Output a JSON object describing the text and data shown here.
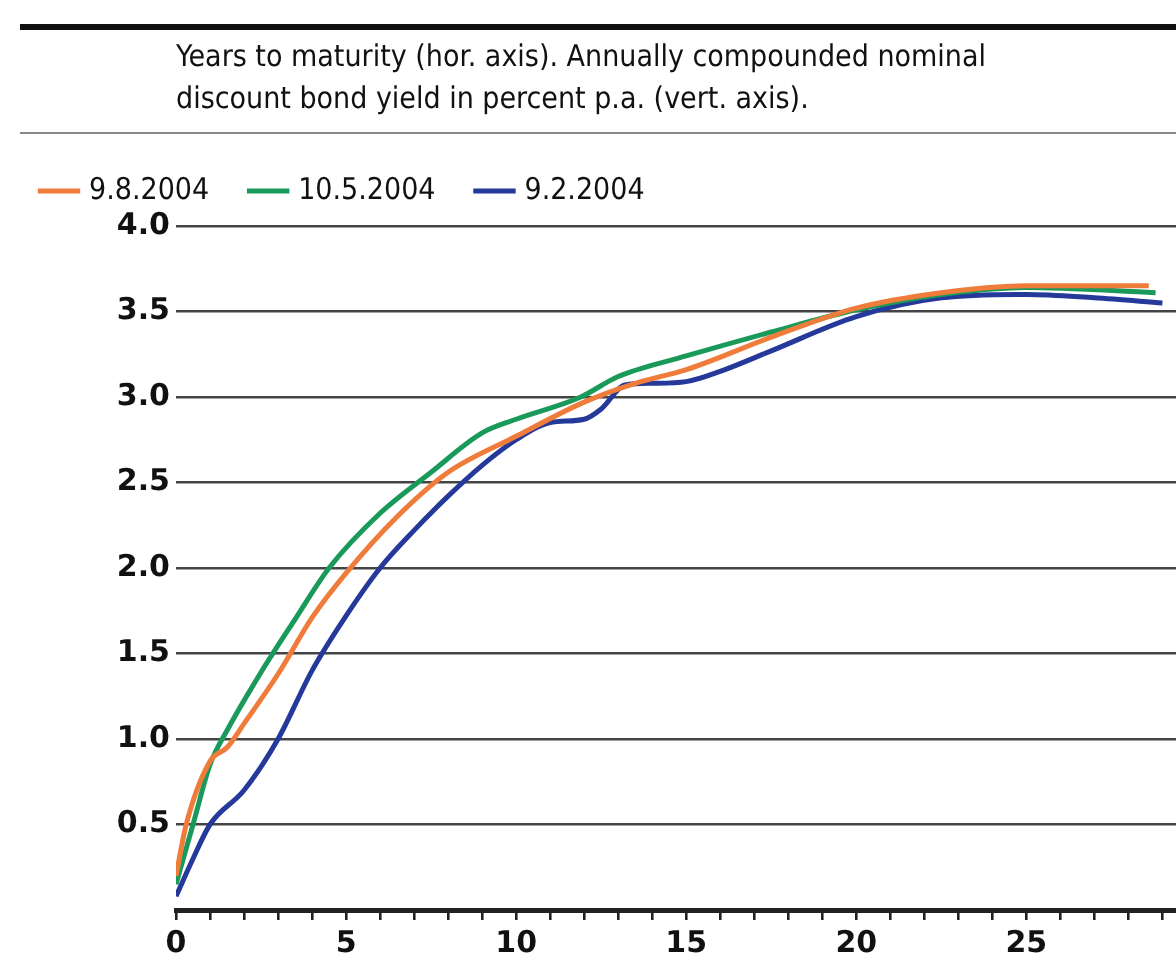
{
  "chart_data": {
    "type": "line",
    "subtitle": "Years to maturity (hor. axis). Annually compounded nominal discount bond yield in percent p.a. (vert. axis).",
    "xlim": [
      0,
      29.4
    ],
    "ylim": [
      0,
      4
    ],
    "xticks": [
      0,
      {
        "value": 1,
        "label": null
      },
      {
        "value": 2,
        "label": null
      },
      {
        "value": 3,
        "label": null
      },
      {
        "value": 4,
        "label": null
      },
      5,
      {
        "value": 6,
        "label": null
      },
      {
        "value": 7,
        "label": null
      },
      {
        "value": 8,
        "label": null
      },
      {
        "value": 9,
        "label": null
      },
      10,
      {
        "value": 11,
        "label": null
      },
      {
        "value": 12,
        "label": null
      },
      {
        "value": 13,
        "label": null
      },
      {
        "value": 14,
        "label": null
      },
      15,
      {
        "value": 16,
        "label": null
      },
      {
        "value": 17,
        "label": null
      },
      {
        "value": 18,
        "label": null
      },
      {
        "value": 19,
        "label": null
      },
      20,
      {
        "value": 21,
        "label": null
      },
      {
        "value": 22,
        "label": null
      },
      {
        "value": 23,
        "label": null
      },
      {
        "value": 24,
        "label": null
      },
      25,
      {
        "value": 26,
        "label": null
      },
      {
        "value": 27,
        "label": null
      },
      {
        "value": 28,
        "label": null
      },
      {
        "value": 29,
        "label": null
      }
    ],
    "yticks": [
      {
        "value": 0.5,
        "label": "0.5"
      },
      {
        "value": 1,
        "label": "1.0"
      },
      {
        "value": 1.5,
        "label": "1.5"
      },
      {
        "value": 2,
        "label": "2.0"
      },
      {
        "value": 2.5,
        "label": "2.5"
      },
      {
        "value": 3,
        "label": "3.0"
      },
      {
        "value": 3.5,
        "label": "3.5"
      },
      {
        "value": 4,
        "label": "4.0"
      }
    ],
    "grid": "y",
    "legend": "top",
    "marker": "none",
    "line_style": "solid",
    "series": [
      {
        "name": "9.8.2004",
        "color": "#f07c3c",
        "x": [
          0,
          0.3,
          1,
          1.5,
          2,
          3,
          4,
          5,
          6.5,
          8,
          10,
          12,
          13.5,
          15,
          17.5,
          20,
          22.5,
          25,
          28.6
        ],
        "values": [
          0.2,
          0.5,
          0.87,
          0.95,
          1.09,
          1.38,
          1.71,
          1.97,
          2.3,
          2.56,
          2.77,
          2.97,
          3.08,
          3.16,
          3.35,
          3.52,
          3.61,
          3.65,
          3.65
        ]
      },
      {
        "name": "10.5.2004",
        "color": "#1a9a5a",
        "x": [
          0,
          0.5,
          1,
          1.5,
          2.5,
          3.5,
          4.5,
          6,
          7.5,
          9,
          10,
          11.9,
          13,
          15,
          17.5,
          20,
          22.5,
          25,
          28.8
        ],
        "values": [
          0.15,
          0.5,
          0.85,
          1.05,
          1.39,
          1.7,
          2.0,
          2.32,
          2.56,
          2.79,
          2.87,
          3.0,
          3.12,
          3.24,
          3.38,
          3.51,
          3.6,
          3.64,
          3.61
        ]
      },
      {
        "name": "9.2.2004",
        "color": "#24399a",
        "x": [
          0,
          0.5,
          1,
          2,
          3,
          4,
          5,
          6,
          7,
          8,
          9,
          10,
          11,
          12,
          12.5,
          13.2,
          14,
          15,
          16,
          17.5,
          20,
          22.5,
          25,
          27,
          29
        ],
        "values": [
          0.08,
          0.3,
          0.5,
          0.7,
          1.0,
          1.4,
          1.72,
          2.0,
          2.22,
          2.42,
          2.6,
          2.75,
          2.85,
          2.87,
          2.93,
          3.07,
          3.08,
          3.09,
          3.15,
          3.27,
          3.47,
          3.58,
          3.6,
          3.58,
          3.55
        ]
      }
    ]
  }
}
